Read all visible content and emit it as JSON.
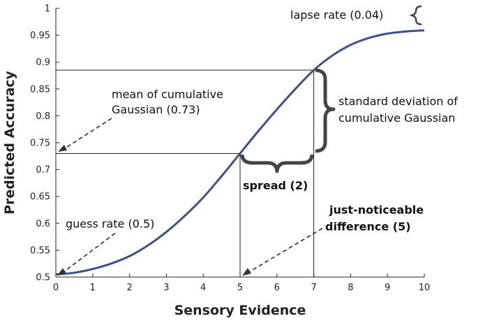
{
  "chart_data": {
    "type": "line",
    "title": "",
    "xlabel": "Sensory Evidence",
    "ylabel": "Predicted Accuracy",
    "xlim": [
      0,
      10
    ],
    "ylim": [
      0.5,
      1
    ],
    "xticks": [
      "0",
      "1",
      "2",
      "3",
      "4",
      "5",
      "6",
      "7",
      "8",
      "9",
      "10"
    ],
    "yticks": [
      "0.5",
      "0.55",
      "0.6",
      "0.65",
      "0.7",
      "0.75",
      "0.8",
      "0.85",
      "0.9",
      "0.95",
      "1"
    ],
    "grid": false,
    "curve_color": "#3a4f94",
    "series": [
      {
        "x": [
          0,
          0.5,
          1,
          1.5,
          2,
          2.5,
          3,
          3.5,
          4,
          4.5,
          5,
          5.5,
          6,
          6.5,
          7,
          7.5,
          8,
          8.5,
          9,
          9.5,
          10
        ],
        "values": [
          0.505,
          0.508,
          0.515,
          0.525,
          0.539,
          0.559,
          0.584,
          0.614,
          0.648,
          0.688,
          0.73,
          0.772,
          0.812,
          0.85,
          0.885,
          0.912,
          0.932,
          0.945,
          0.953,
          0.957,
          0.959
        ]
      }
    ],
    "reference_lines": [
      {
        "x1": 0,
        "y1": 0.885,
        "x2": 7,
        "y2": 0.885
      },
      {
        "x1": 7,
        "y1": 0.885,
        "x2": 7,
        "y2": 0.5
      },
      {
        "x1": 0,
        "y1": 0.73,
        "x2": 5,
        "y2": 0.73
      },
      {
        "x1": 5,
        "y1": 0.73,
        "x2": 5,
        "y2": 0.5
      }
    ],
    "annotations": {
      "lapse": "lapse rate (0.04)",
      "mean_line1": "mean of cumulative",
      "mean_line2": "Gaussian (0.73)",
      "sd_line1": "standard deviation of",
      "sd_line2": "cumulative Gaussian",
      "spread": "spread (2)",
      "guess": "guess rate (0.5)",
      "jnd_line1": "just-noticeable",
      "jnd_line2": "difference (5)"
    },
    "annotation_targets": {
      "mean": {
        "x": 0,
        "y": 0.73
      },
      "guess": {
        "x": 0,
        "y": 0.5
      },
      "jnd": {
        "x": 5,
        "y": 0.5
      }
    }
  }
}
